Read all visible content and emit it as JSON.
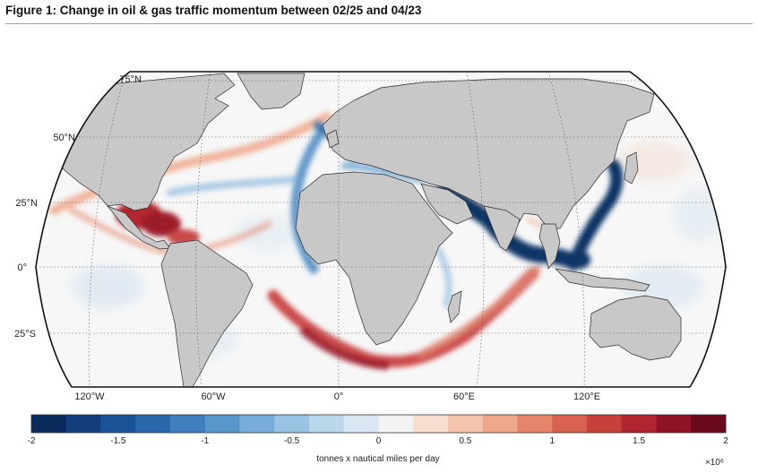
{
  "title": "Figure 1: Change in oil & gas traffic momentum between 02/25 and 04/23",
  "map": {
    "projection": "robinson",
    "latitude_labels": [
      "75°N",
      "50°N",
      "25°N",
      "0°",
      "25°S"
    ],
    "longitude_labels": [
      "120°W",
      "60°W",
      "0°",
      "60°E",
      "120°E"
    ],
    "land_color": "#c8c8c8",
    "ocean_color": "#f7f7f7"
  },
  "colorbar": {
    "ticks": [
      "-2",
      "-1.5",
      "-1",
      "-0.5",
      "0",
      "0.5",
      "1",
      "1.5",
      "2"
    ],
    "label": "tonnes x nautical miles per day",
    "scale": "×10⁶",
    "colors": [
      "#0a2c5c",
      "#123f7b",
      "#1a5398",
      "#2b68ab",
      "#3f7fbd",
      "#5896cb",
      "#77add8",
      "#99c3e3",
      "#bad7ec",
      "#d9e8f3",
      "#f3f3f3",
      "#f8dfd2",
      "#f5c4ae",
      "#efa68a",
      "#e6846a",
      "#d86150",
      "#c6403c",
      "#b0252f",
      "#8f1327",
      "#6b0a1f"
    ]
  }
}
